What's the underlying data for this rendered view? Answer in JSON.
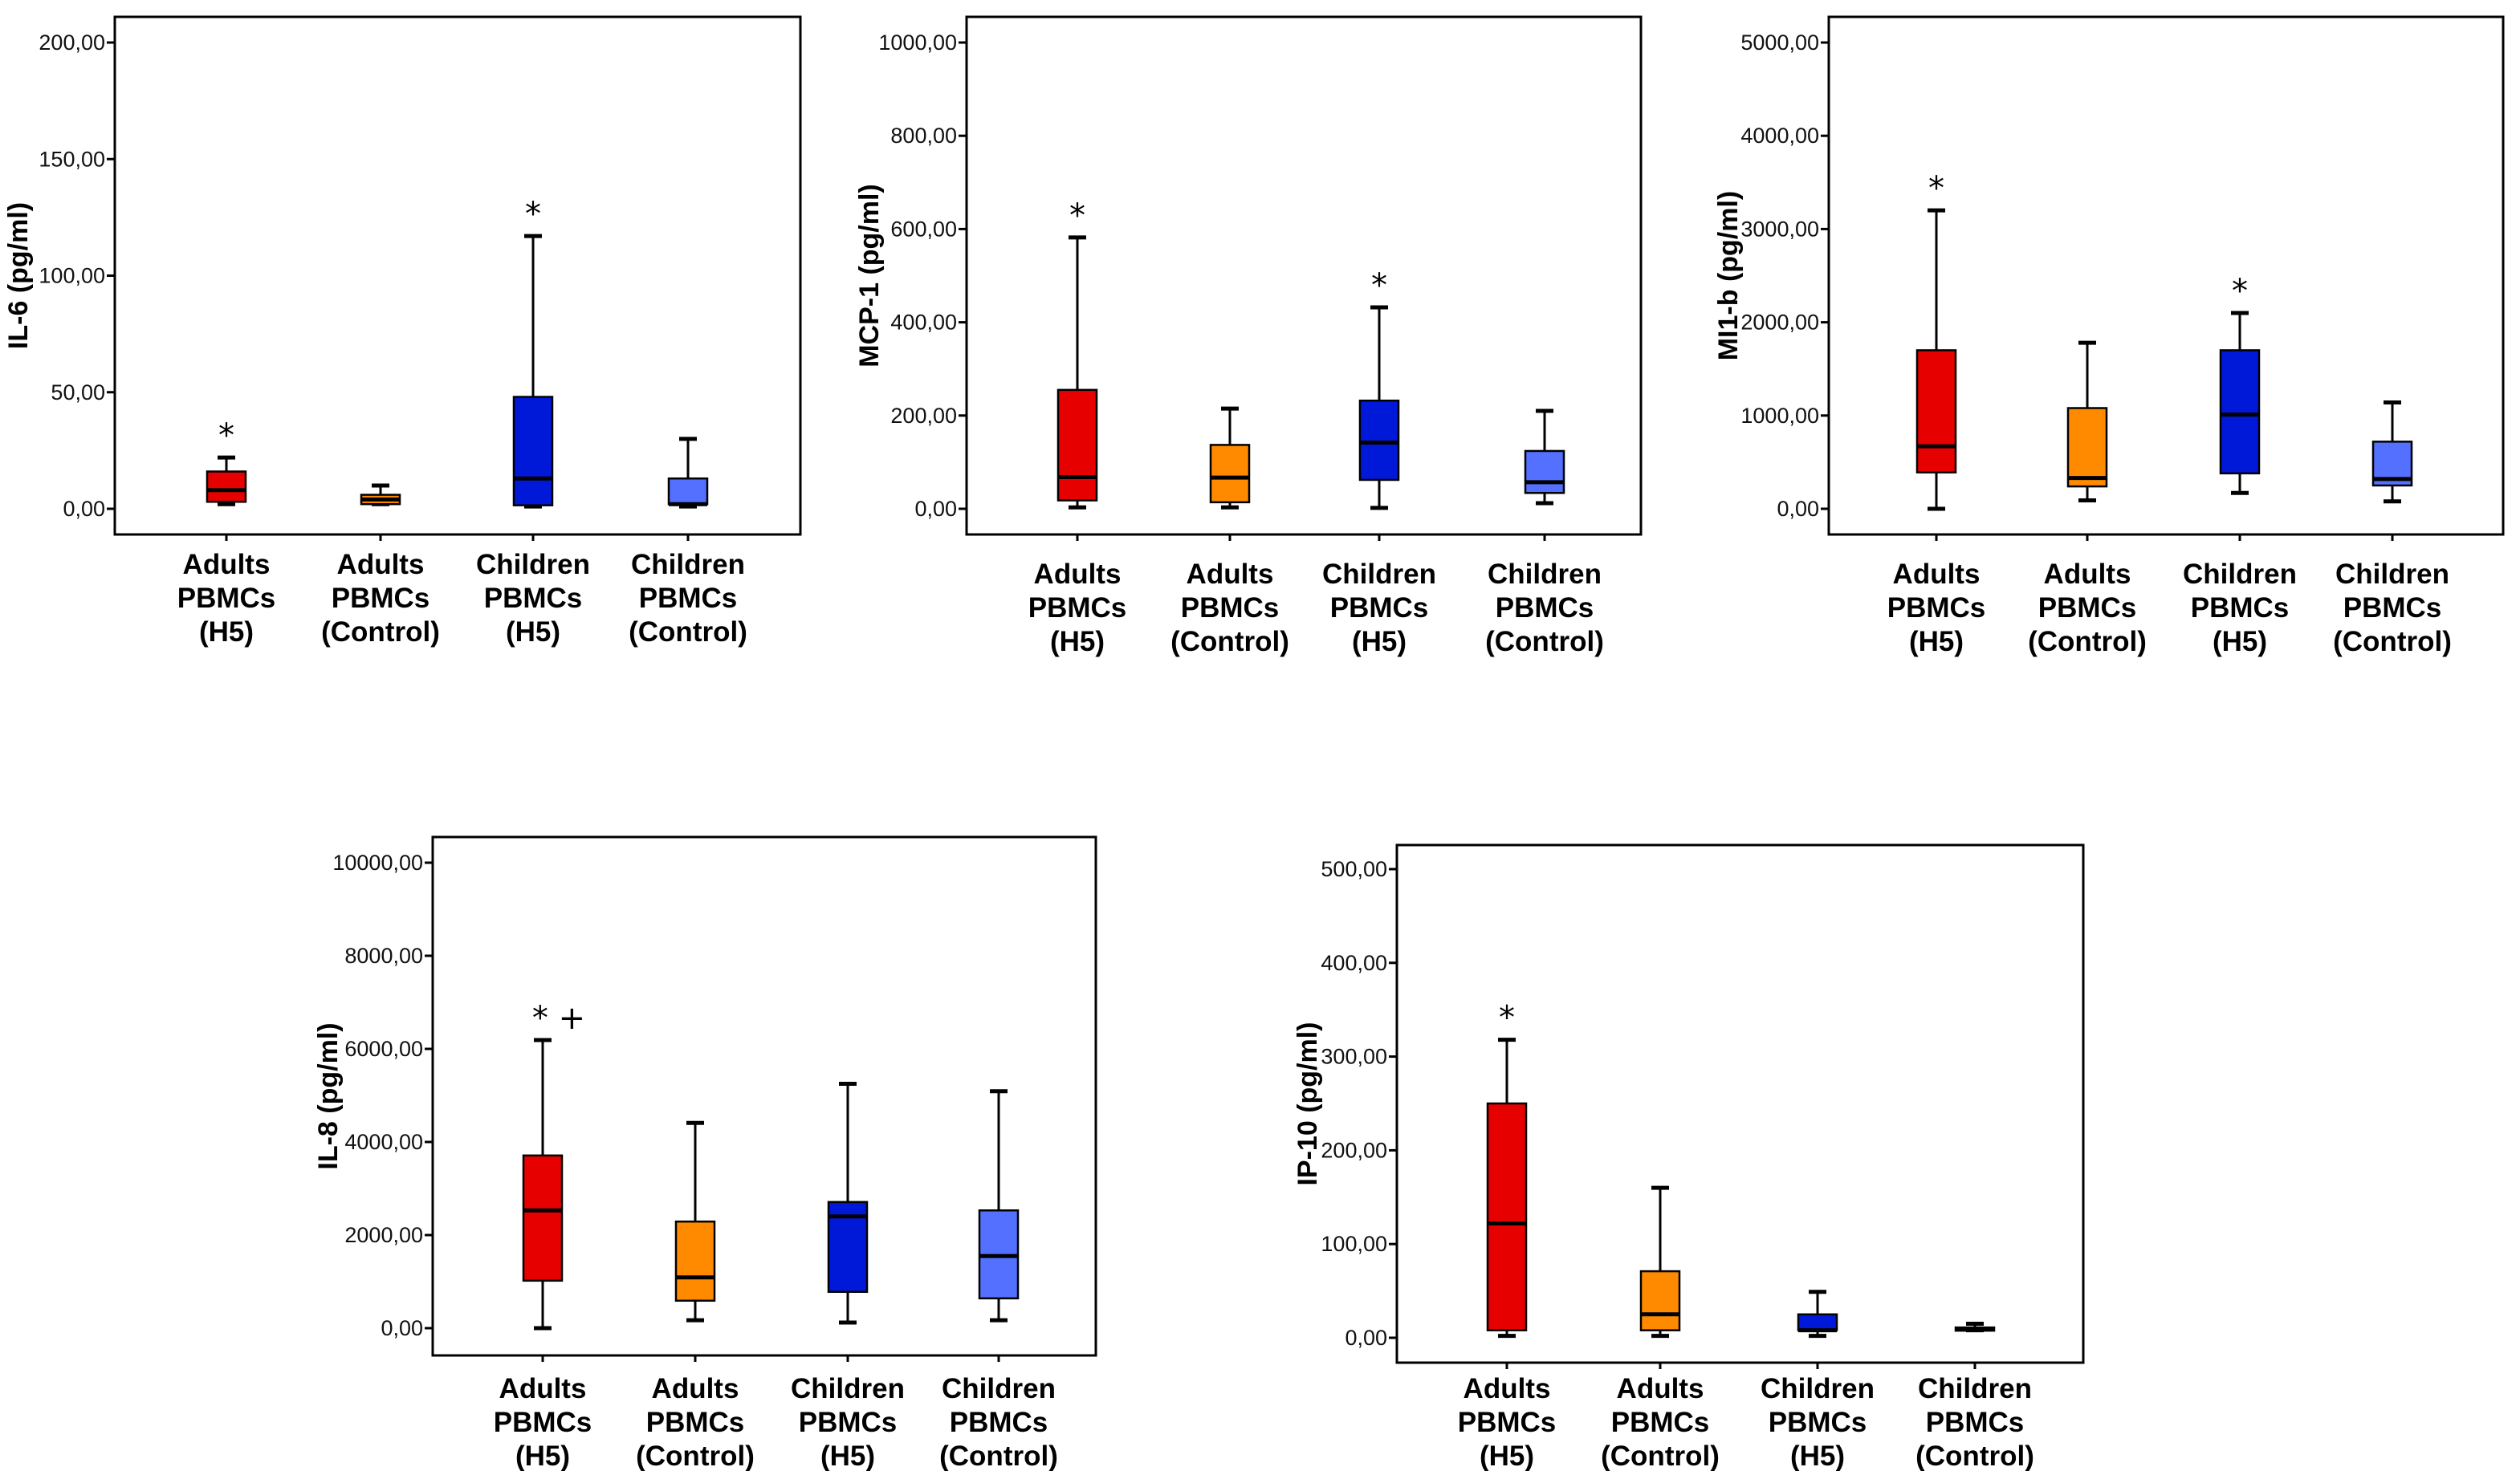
{
  "chart_data": [
    {
      "type": "box",
      "title": "",
      "ylabel": "IL-6 (pg/ml)",
      "xlabel": "",
      "ylim": [
        0,
        200
      ],
      "yticks": [
        0,
        50,
        100,
        150,
        200
      ],
      "ytick_labels": [
        "0,00",
        "50,00",
        "100,00",
        "150,00",
        "200,00"
      ],
      "grid": false,
      "categories": [
        [
          "Adults",
          "PBMCs",
          "(H5)"
        ],
        [
          "Adults",
          "PBMCs",
          "(Control)"
        ],
        [
          "Children",
          "PBMCs",
          "(H5)"
        ],
        [
          "Children",
          "PBMCs",
          "(Control)"
        ]
      ],
      "boxes": [
        {
          "min": 2,
          "q1": 3,
          "median": 8,
          "q3": 16,
          "max": 22,
          "color": "#e60000",
          "annotation": "*"
        },
        {
          "min": 2,
          "q1": 2,
          "median": 4,
          "q3": 6,
          "max": 10,
          "color": "#ff8a00",
          "annotation": ""
        },
        {
          "min": 1,
          "q1": 1.5,
          "median": 13,
          "q3": 48,
          "max": 117,
          "color": "#0019d9",
          "annotation": "*"
        },
        {
          "min": 1,
          "q1": 2,
          "median": 2,
          "q3": 13,
          "max": 30,
          "color": "#5370ff",
          "annotation": ""
        }
      ]
    },
    {
      "type": "box",
      "title": "",
      "ylabel": "MCP-1 (pg/ml)",
      "xlabel": "",
      "ylim": [
        0,
        1000
      ],
      "yticks": [
        0,
        200,
        400,
        600,
        800,
        1000
      ],
      "ytick_labels": [
        "0,00",
        "200,00",
        "400,00",
        "600,00",
        "800,00",
        "1000,00"
      ],
      "grid": false,
      "categories": [
        [
          "Adults",
          "PBMCs",
          "(H5)"
        ],
        [
          "Adults",
          "PBMCs",
          "(Control)"
        ],
        [
          "Children",
          "PBMCs",
          "(H5)"
        ],
        [
          "Children",
          "PBMCs",
          "(Control)"
        ]
      ],
      "boxes": [
        {
          "min": 3,
          "q1": 18,
          "median": 68,
          "q3": 255,
          "max": 582,
          "color": "#e60000",
          "annotation": "*"
        },
        {
          "min": 3,
          "q1": 14,
          "median": 67,
          "q3": 137,
          "max": 215,
          "color": "#ff8a00",
          "annotation": ""
        },
        {
          "min": 2,
          "q1": 62,
          "median": 142,
          "q3": 232,
          "max": 432,
          "color": "#0019d9",
          "annotation": "*"
        },
        {
          "min": 12,
          "q1": 34,
          "median": 57,
          "q3": 124,
          "max": 210,
          "color": "#5370ff",
          "annotation": ""
        }
      ]
    },
    {
      "type": "box",
      "title": "",
      "ylabel": "MI1-b (pg/ml)",
      "xlabel": "",
      "ylim": [
        0,
        5000
      ],
      "yticks": [
        0,
        1000,
        2000,
        3000,
        4000,
        5000
      ],
      "ytick_labels": [
        "0,00",
        "1000,00",
        "2000,00",
        "3000,00",
        "4000,00",
        "5000,00"
      ],
      "grid": false,
      "categories": [
        [
          "Adults",
          "PBMCs",
          "(H5)"
        ],
        [
          "Adults",
          "PBMCs",
          "(Control)"
        ],
        [
          "Children",
          "PBMCs",
          "(H5)"
        ],
        [
          "Children",
          "PBMCs",
          "(Control)"
        ]
      ],
      "boxes": [
        {
          "min": 0,
          "q1": 390,
          "median": 670,
          "q3": 1700,
          "max": 3200,
          "color": "#e60000",
          "annotation": "*"
        },
        {
          "min": 90,
          "q1": 240,
          "median": 330,
          "q3": 1080,
          "max": 1780,
          "color": "#ff8a00",
          "annotation": ""
        },
        {
          "min": 170,
          "q1": 380,
          "median": 1010,
          "q3": 1700,
          "max": 2100,
          "color": "#0019d9",
          "annotation": "*"
        },
        {
          "min": 80,
          "q1": 250,
          "median": 320,
          "q3": 720,
          "max": 1140,
          "color": "#5370ff",
          "annotation": ""
        }
      ]
    },
    {
      "type": "box",
      "title": "",
      "ylabel": "IL-8 (pg/ml)",
      "xlabel": "",
      "ylim": [
        0,
        10000
      ],
      "yticks": [
        0,
        2000,
        4000,
        6000,
        8000,
        10000
      ],
      "ytick_labels": [
        "0,00",
        "2000,00",
        "4000,00",
        "6000,00",
        "8000,00",
        "10000,00"
      ],
      "grid": false,
      "categories": [
        [
          "Adults",
          "PBMCs",
          "(H5)"
        ],
        [
          "Adults",
          "PBMCs",
          "(Control)"
        ],
        [
          "Children",
          "PBMCs",
          "(H5)"
        ],
        [
          "Children",
          "PBMCs",
          "(Control)"
        ]
      ],
      "boxes": [
        {
          "min": 0,
          "q1": 1020,
          "median": 2530,
          "q3": 3710,
          "max": 6190,
          "color": "#e60000",
          "annotation": "* +"
        },
        {
          "min": 170,
          "q1": 590,
          "median": 1090,
          "q3": 2290,
          "max": 4410,
          "color": "#ff8a00",
          "annotation": ""
        },
        {
          "min": 120,
          "q1": 780,
          "median": 2400,
          "q3": 2710,
          "max": 5250,
          "color": "#0019d9",
          "annotation": ""
        },
        {
          "min": 170,
          "q1": 640,
          "median": 1550,
          "q3": 2530,
          "max": 5090,
          "color": "#5370ff",
          "annotation": ""
        }
      ]
    },
    {
      "type": "box",
      "title": "",
      "ylabel": "IP-10 (pg/ml)",
      "xlabel": "",
      "ylim": [
        0,
        500
      ],
      "yticks": [
        0,
        100,
        200,
        300,
        400,
        500
      ],
      "ytick_labels": [
        "0,00",
        "100,00",
        "200,00",
        "300,00",
        "400,00",
        "500,00"
      ],
      "grid": false,
      "categories": [
        [
          "Adults",
          "PBMCs",
          "(H5)"
        ],
        [
          "Adults",
          "PBMCs",
          "(Control)"
        ],
        [
          "Children",
          "PBMCs",
          "(H5)"
        ],
        [
          "Children",
          "PBMCs",
          "(Control)"
        ]
      ],
      "boxes": [
        {
          "min": 2,
          "q1": 8,
          "median": 122,
          "q3": 250,
          "max": 318,
          "color": "#e60000",
          "annotation": "*"
        },
        {
          "min": 2,
          "q1": 8,
          "median": 25,
          "q3": 71,
          "max": 160,
          "color": "#ff8a00",
          "annotation": ""
        },
        {
          "min": 2,
          "q1": 8,
          "median": 8,
          "q3": 25,
          "max": 49,
          "color": "#0019d9",
          "annotation": ""
        },
        {
          "min": 8,
          "q1": 8,
          "median": 9,
          "q3": 11,
          "max": 15,
          "color": "#5370ff",
          "annotation": ""
        }
      ]
    }
  ]
}
